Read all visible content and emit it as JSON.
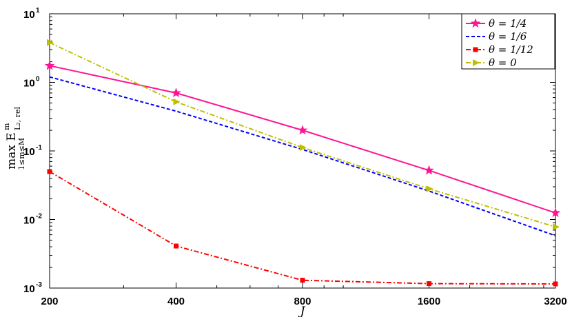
{
  "chart_data": {
    "type": "line",
    "xscale": "log",
    "yscale": "log",
    "x": [
      200,
      400,
      800,
      1600,
      3200
    ],
    "x_tick_labels": [
      "200",
      "400",
      "800",
      "1600",
      "3200"
    ],
    "xlim": [
      200,
      3200
    ],
    "ylim": [
      0.001,
      10
    ],
    "y_tick_labels": [
      {
        "base": "10",
        "exp": "-3"
      },
      {
        "base": "10",
        "exp": "-2"
      },
      {
        "base": "10",
        "exp": "-1"
      },
      {
        "base": "10",
        "exp": "0"
      },
      {
        "base": "10",
        "exp": "1"
      }
    ],
    "xlabel": "J",
    "ylabel": {
      "main": "max E",
      "sub": "1≤m≤M",
      "sup": "m",
      "subscript": "L₂, rel"
    },
    "legend_position": "top-right",
    "grid": false,
    "series": [
      {
        "name": "θ = 1/4",
        "color": "#ff1493",
        "style": "solid",
        "marker": "star",
        "values": [
          1.75,
          0.7,
          0.2,
          0.052,
          0.0125
        ]
      },
      {
        "name": "θ = 1/6",
        "color": "#0000ff",
        "style": "dashed",
        "marker": "none",
        "values": [
          1.2,
          0.38,
          0.105,
          0.026,
          0.0058
        ]
      },
      {
        "name": "θ = 1/12",
        "color": "#ff0000",
        "style": "dashdot",
        "marker": "square",
        "values": [
          0.05,
          0.0041,
          0.0013,
          0.00116,
          0.00115
        ]
      },
      {
        "name": "θ = 0",
        "color": "#bfbf00",
        "style": "dashdot",
        "marker": "triangle-right",
        "values": [
          3.8,
          0.52,
          0.112,
          0.028,
          0.0078
        ]
      }
    ]
  }
}
